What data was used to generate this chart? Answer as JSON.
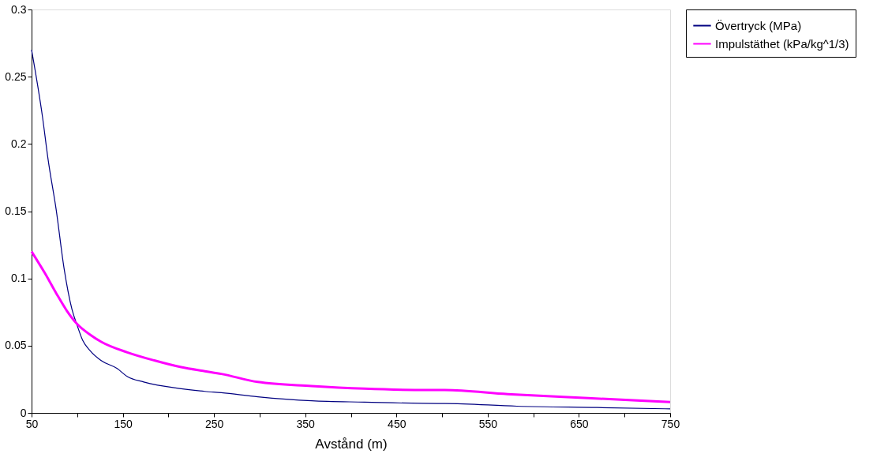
{
  "chart_data": {
    "type": "line",
    "xlabel": "Avstånd (m)",
    "x": [
      50,
      62,
      68,
      77,
      85.5,
      94.3,
      100,
      106,
      114.5,
      126,
      143.8,
      155,
      173,
      214,
      240,
      258,
      298,
      357,
      415,
      495,
      503,
      582,
      670,
      750
    ],
    "series": [
      {
        "name": "Övertryck (MPa)",
        "color": "#000080",
        "values": [
          0.27,
          0.22,
          0.189,
          0.151,
          0.108,
          0.077,
          0.065,
          0.054,
          0.046,
          0.039,
          0.033,
          0.027,
          0.023,
          0.018,
          0.016,
          0.015,
          0.012,
          0.009,
          0.008,
          0.007,
          0.007,
          0.005,
          0.004,
          0.003
        ]
      },
      {
        "name": "Impulstäthet (kPa/kg^1/3)",
        "color": "#ff00ff",
        "x": [
          50,
          64.5,
          77,
          88.6,
          100,
          114.5,
          126,
          155,
          184.5,
          214,
          240,
          258,
          298,
          357,
          415,
          484,
          503,
          572,
          660,
          750
        ],
        "values": [
          0.12,
          0.104,
          0.089,
          0.076,
          0.066,
          0.058,
          0.053,
          0.045,
          0.039,
          0.034,
          0.031,
          0.029,
          0.023,
          0.02,
          0.018,
          0.017,
          0.017,
          0.014,
          0.011,
          0.008
        ]
      }
    ],
    "xlim": [
      50,
      750
    ],
    "xticks": [
      50,
      {
        "value": 100,
        "label": null
      },
      150,
      {
        "value": 200,
        "label": null
      },
      250,
      {
        "value": 300,
        "label": null
      },
      350,
      {
        "value": 400,
        "label": null
      },
      450,
      {
        "value": 500,
        "label": null
      },
      550,
      {
        "value": 600,
        "label": null
      },
      650,
      {
        "value": 700,
        "label": null
      },
      750
    ],
    "ylim": [
      0,
      0.3
    ],
    "yticks": [
      0,
      0.05,
      0.1,
      0.15,
      0.2,
      0.25,
      0.3
    ],
    "grid": false,
    "legend": "right",
    "marker": "none",
    "line_style": "solid"
  }
}
